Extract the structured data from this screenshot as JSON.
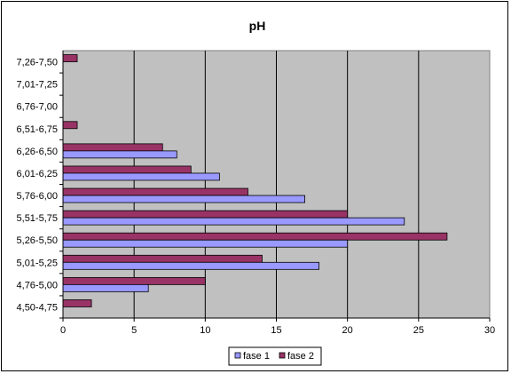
{
  "chart_data": {
    "type": "bar",
    "orientation": "horizontal",
    "title": "pH",
    "categories": [
      "4,50-4,75",
      "4,76-5,00",
      "5,01-5,25",
      "5,26-5,50",
      "5,51-5,75",
      "5,76-6,00",
      "6,01-6,25",
      "6,26-6,50",
      "6,51-6,75",
      "6,76-7,00",
      "7,01-7,25",
      "7,26-7,50"
    ],
    "series": [
      {
        "name": "fase 1",
        "color": "#9999ff",
        "values": [
          0,
          6,
          18,
          20,
          24,
          17,
          11,
          8,
          0,
          0,
          0,
          0
        ]
      },
      {
        "name": "fase 2",
        "color": "#993366",
        "values": [
          2,
          10,
          14,
          27,
          20,
          13,
          9,
          7,
          1,
          0,
          0,
          1
        ]
      }
    ],
    "xlim": [
      0,
      30
    ],
    "xticks": [
      "0",
      "5",
      "10",
      "15",
      "20",
      "25",
      "30"
    ],
    "grid": "vertical",
    "plot_background": "#c0c0c0",
    "legend_position": "bottom"
  }
}
